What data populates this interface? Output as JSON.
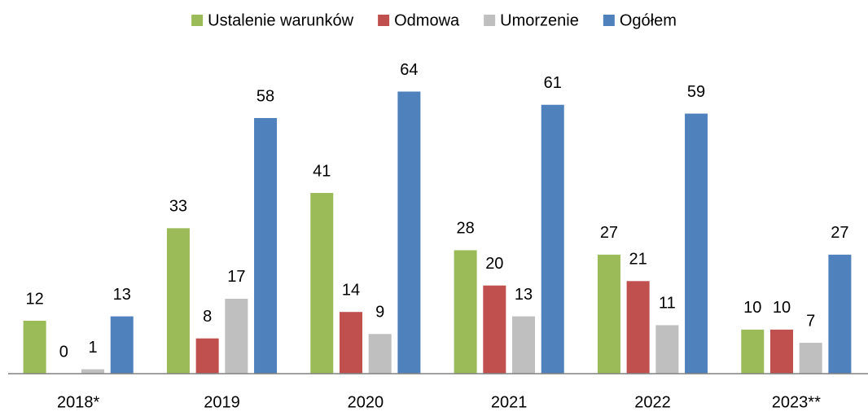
{
  "chart_data": {
    "type": "bar",
    "categories": [
      "2018*",
      "2019",
      "2020",
      "2021",
      "2022",
      "2023**"
    ],
    "series": [
      {
        "name": "Ustalenie warunków",
        "color": "#9bbb59",
        "values": [
          12,
          33,
          41,
          28,
          27,
          10
        ]
      },
      {
        "name": "Odmowa",
        "color": "#c0504d",
        "values": [
          0,
          8,
          14,
          20,
          21,
          10
        ]
      },
      {
        "name": "Umorzenie",
        "color": "#bfbfbf",
        "values": [
          1,
          17,
          9,
          13,
          11,
          7
        ]
      },
      {
        "name": "Ogółem",
        "color": "#4f81bd",
        "values": [
          13,
          58,
          64,
          61,
          59,
          27
        ]
      }
    ],
    "ylim": [
      0,
      70
    ],
    "legend": "top"
  }
}
